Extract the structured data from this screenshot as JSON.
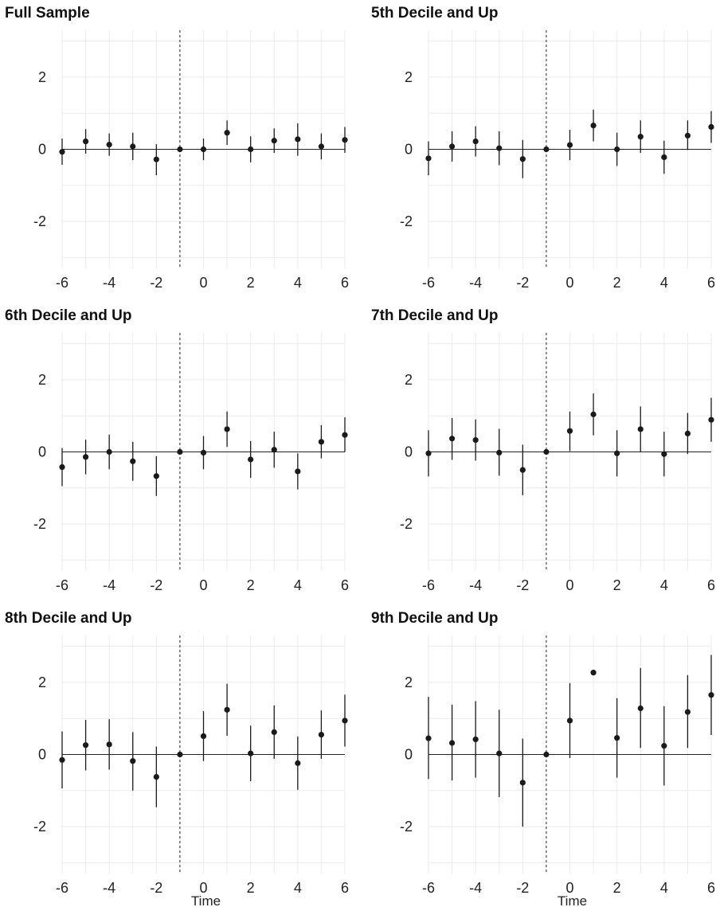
{
  "chart_data": [
    {
      "type": "scatter",
      "title": "Full Sample",
      "xlabel": "",
      "x": [
        -6,
        -5,
        -4,
        -3,
        -2,
        -1,
        0,
        1,
        2,
        3,
        4,
        5,
        6
      ],
      "y": [
        -0.07,
        0.22,
        0.13,
        0.08,
        -0.28,
        0.0,
        0.0,
        0.46,
        0.0,
        0.24,
        0.28,
        0.08,
        0.26
      ],
      "lower": [
        -0.43,
        -0.12,
        -0.18,
        -0.3,
        -0.72,
        null,
        -0.3,
        0.12,
        -0.36,
        -0.1,
        -0.18,
        -0.28,
        -0.1
      ],
      "upper": [
        0.3,
        0.56,
        0.44,
        0.46,
        0.14,
        null,
        0.3,
        0.8,
        0.36,
        0.58,
        0.72,
        0.44,
        0.62
      ],
      "reference_x": -1,
      "xlim": [
        -6,
        6
      ],
      "ylim": [
        -3.3,
        3.3
      ],
      "xticks": [
        "-6",
        "-4",
        "-2",
        "0",
        "2",
        "4",
        "6"
      ],
      "yticks": [
        "2",
        "0",
        "-2"
      ],
      "grid": true
    },
    {
      "type": "scatter",
      "title": "5th Decile and Up",
      "xlabel": "",
      "x": [
        -6,
        -5,
        -4,
        -3,
        -2,
        -1,
        0,
        1,
        2,
        3,
        4,
        5,
        6
      ],
      "y": [
        -0.25,
        0.08,
        0.22,
        0.03,
        -0.27,
        0.0,
        0.12,
        0.66,
        0.0,
        0.35,
        -0.22,
        0.38,
        0.62
      ],
      "lower": [
        -0.72,
        -0.34,
        -0.2,
        -0.44,
        -0.8,
        null,
        -0.3,
        0.22,
        -0.46,
        -0.1,
        -0.68,
        -0.02,
        0.18
      ],
      "upper": [
        0.22,
        0.5,
        0.64,
        0.5,
        0.26,
        null,
        0.54,
        1.1,
        0.46,
        0.8,
        0.24,
        0.8,
        1.06
      ],
      "reference_x": -1,
      "xlim": [
        -6,
        6
      ],
      "ylim": [
        -3.3,
        3.3
      ],
      "xticks": [
        "-6",
        "-4",
        "-2",
        "0",
        "2",
        "4",
        "6"
      ],
      "yticks": [
        "2",
        "0",
        "-2"
      ],
      "grid": true
    },
    {
      "type": "scatter",
      "title": "6th Decile and Up",
      "xlabel": "",
      "x": [
        -6,
        -5,
        -4,
        -3,
        -2,
        -1,
        0,
        1,
        2,
        3,
        4,
        5,
        6
      ],
      "y": [
        -0.42,
        -0.14,
        0.0,
        -0.26,
        -0.67,
        0.0,
        -0.02,
        0.63,
        -0.21,
        0.06,
        -0.54,
        0.28,
        0.47
      ],
      "lower": [
        -0.95,
        -0.62,
        -0.48,
        -0.8,
        -1.22,
        null,
        -0.48,
        0.14,
        -0.72,
        -0.44,
        -1.04,
        -0.18,
        0.0
      ],
      "upper": [
        0.11,
        0.34,
        0.48,
        0.28,
        -0.12,
        null,
        0.44,
        1.12,
        0.3,
        0.56,
        -0.04,
        0.74,
        0.96
      ],
      "reference_x": -1,
      "xlim": [
        -6,
        6
      ],
      "ylim": [
        -3.3,
        3.3
      ],
      "xticks": [
        "-6",
        "-4",
        "-2",
        "0",
        "2",
        "4",
        "6"
      ],
      "yticks": [
        "2",
        "0",
        "-2"
      ],
      "grid": true
    },
    {
      "type": "scatter",
      "title": "7th Decile and Up",
      "xlabel": "",
      "x": [
        -6,
        -5,
        -4,
        -3,
        -2,
        -1,
        0,
        1,
        2,
        3,
        4,
        5,
        6
      ],
      "y": [
        -0.04,
        0.37,
        0.33,
        -0.02,
        -0.5,
        0.0,
        0.58,
        1.04,
        -0.04,
        0.63,
        -0.06,
        0.51,
        0.89
      ],
      "lower": [
        -0.68,
        -0.22,
        -0.24,
        -0.66,
        -1.2,
        null,
        0.02,
        0.46,
        -0.68,
        0.0,
        -0.68,
        -0.06,
        0.28
      ],
      "upper": [
        0.6,
        0.94,
        0.9,
        0.64,
        0.2,
        null,
        1.12,
        1.62,
        0.6,
        1.26,
        0.56,
        1.08,
        1.5
      ],
      "reference_x": -1,
      "xlim": [
        -6,
        6
      ],
      "ylim": [
        -3.3,
        3.3
      ],
      "xticks": [
        "-6",
        "-4",
        "-2",
        "0",
        "2",
        "4",
        "6"
      ],
      "yticks": [
        "2",
        "0",
        "-2"
      ],
      "grid": true
    },
    {
      "type": "scatter",
      "title": "8th Decile and Up",
      "xlabel": "Time",
      "x": [
        -6,
        -5,
        -4,
        -3,
        -2,
        -1,
        0,
        1,
        2,
        3,
        4,
        5,
        6
      ],
      "y": [
        -0.15,
        0.26,
        0.28,
        -0.18,
        -0.62,
        0.0,
        0.51,
        1.24,
        0.03,
        0.62,
        -0.24,
        0.55,
        0.94
      ],
      "lower": [
        -0.94,
        -0.44,
        -0.42,
        -1.0,
        -1.46,
        null,
        -0.18,
        0.52,
        -0.74,
        -0.12,
        -0.98,
        -0.12,
        0.22
      ],
      "upper": [
        0.64,
        0.96,
        0.98,
        0.62,
        0.22,
        null,
        1.2,
        1.96,
        0.8,
        1.36,
        0.5,
        1.22,
        1.66
      ],
      "reference_x": -1,
      "xlim": [
        -6,
        6
      ],
      "ylim": [
        -3.3,
        3.3
      ],
      "xticks": [
        "-6",
        "-4",
        "-2",
        "0",
        "2",
        "4",
        "6"
      ],
      "yticks": [
        "2",
        "0",
        "-2"
      ],
      "grid": true
    },
    {
      "type": "scatter",
      "title": "9th Decile and Up",
      "xlabel": "Time",
      "x": [
        -6,
        -5,
        -4,
        -3,
        -2,
        -1,
        0,
        1,
        2,
        3,
        4,
        5,
        6
      ],
      "y": [
        0.45,
        0.32,
        0.42,
        0.03,
        -0.78,
        0.0,
        0.94,
        2.27,
        0.46,
        1.28,
        0.24,
        1.18,
        1.65
      ],
      "lower": [
        -0.68,
        -0.72,
        -0.64,
        -1.18,
        -2.0,
        null,
        -0.1,
        null,
        -0.64,
        0.18,
        -0.86,
        0.18,
        0.54
      ],
      "upper": [
        1.6,
        1.38,
        1.48,
        1.24,
        0.44,
        null,
        1.98,
        null,
        1.56,
        2.4,
        1.34,
        2.2,
        2.76
      ],
      "reference_x": -1,
      "xlim": [
        -6,
        6
      ],
      "ylim": [
        -3.3,
        3.3
      ],
      "xticks": [
        "-6",
        "-4",
        "-2",
        "0",
        "2",
        "4",
        "6"
      ],
      "yticks": [
        "2",
        "0",
        "-2"
      ],
      "grid": true
    }
  ]
}
